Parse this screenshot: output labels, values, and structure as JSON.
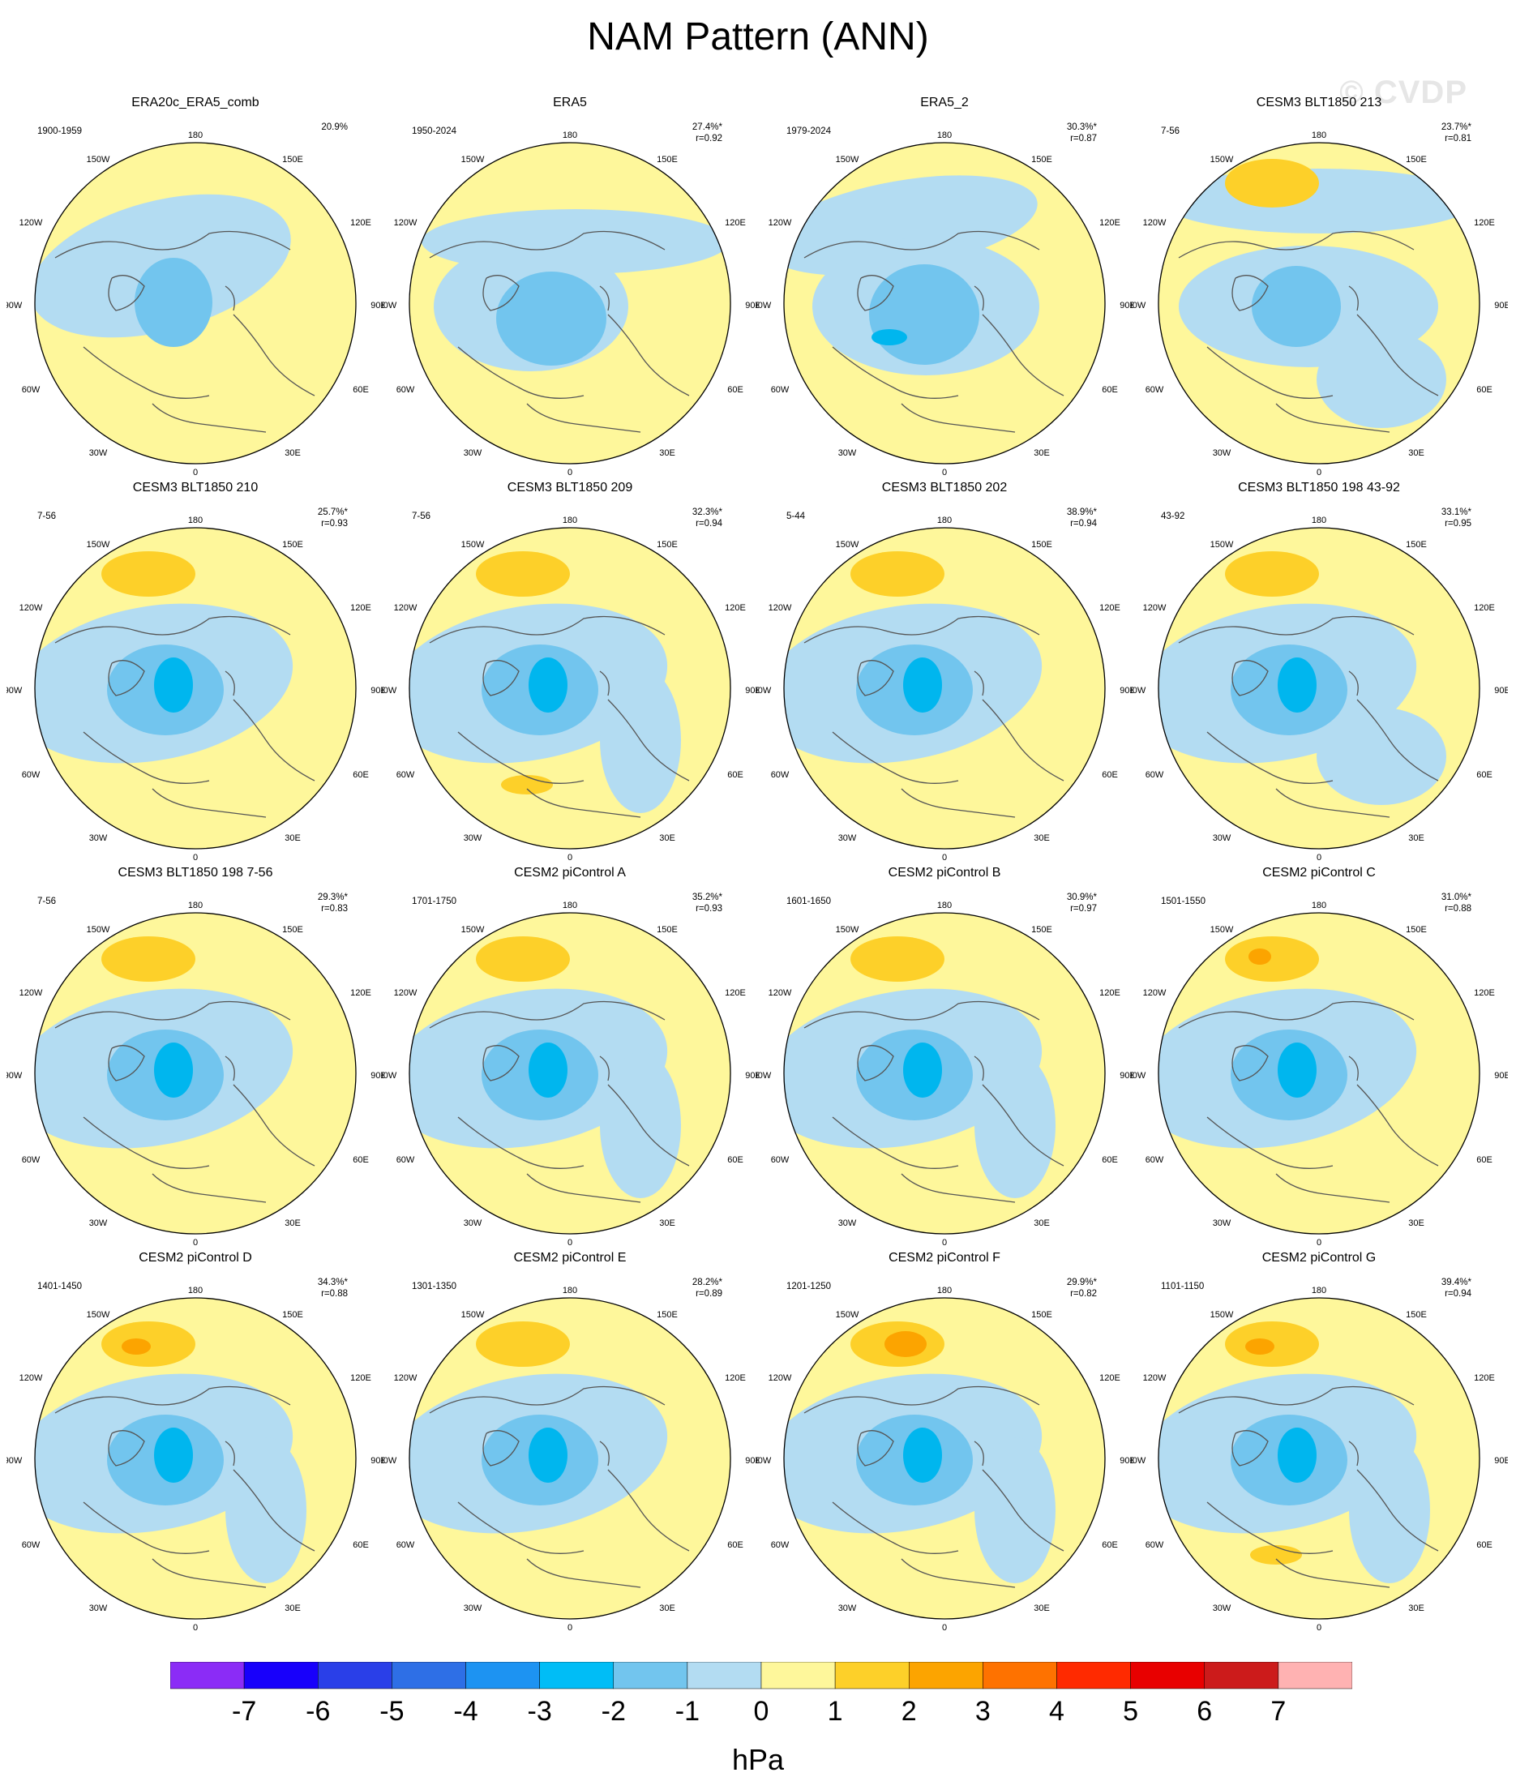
{
  "title": "NAM Pattern (ANN)",
  "watermark": "© CVDP",
  "colors": {
    "c-1": "#b3dcf2",
    "c-2": "#72c5ee",
    "c-3": "#00b6ee",
    "c1": "#fef79b",
    "c2": "#fdd029",
    "c3": "#fca400",
    "land_line": "#555555",
    "border": "#000000"
  },
  "map_labels": {
    "lon_180": "180",
    "lon_150W": "150W",
    "lon_150E": "150E",
    "lon_120W": "120W",
    "lon_120E": "120E",
    "lon_90W": "90W",
    "lon_90E": "90E",
    "lon_60W": "60W",
    "lon_60E": "60E",
    "lon_30W": "30W",
    "lon_30E": "30E",
    "lon_0": "0"
  },
  "panels": [
    {
      "title": "ERA20c_ERA5_comb",
      "period": "1900-1959",
      "pct": "20.9%",
      "r": ""
    },
    {
      "title": "ERA5",
      "period": "1950-2024",
      "pct": "27.4%*",
      "r": "r=0.92"
    },
    {
      "title": "ERA5_2",
      "period": "1979-2024",
      "pct": "30.3%*",
      "r": "r=0.87"
    },
    {
      "title": "CESM3 BLT1850 213",
      "period": "7-56",
      "pct": "23.7%*",
      "r": "r=0.81"
    },
    {
      "title": "CESM3 BLT1850 210",
      "period": "7-56",
      "pct": "25.7%*",
      "r": "r=0.93"
    },
    {
      "title": "CESM3 BLT1850 209",
      "period": "7-56",
      "pct": "32.3%*",
      "r": "r=0.94"
    },
    {
      "title": "CESM3 BLT1850 202",
      "period": "5-44",
      "pct": "38.9%*",
      "r": "r=0.94"
    },
    {
      "title": "CESM3 BLT1850 198 43-92",
      "period": "43-92",
      "pct": "33.1%*",
      "r": "r=0.95"
    },
    {
      "title": "CESM3 BLT1850 198 7-56",
      "period": "7-56",
      "pct": "29.3%*",
      "r": "r=0.83"
    },
    {
      "title": "CESM2 piControl A",
      "period": "1701-1750",
      "pct": "35.2%*",
      "r": "r=0.93"
    },
    {
      "title": "CESM2 piControl B",
      "period": "1601-1650",
      "pct": "30.9%*",
      "r": "r=0.97"
    },
    {
      "title": "CESM2 piControl C",
      "period": "1501-1550",
      "pct": "31.0%*",
      "r": "r=0.88"
    },
    {
      "title": "CESM2 piControl D",
      "period": "1401-1450",
      "pct": "34.3%*",
      "r": "r=0.88"
    },
    {
      "title": "CESM2 piControl E",
      "period": "1301-1350",
      "pct": "28.2%*",
      "r": "r=0.89"
    },
    {
      "title": "CESM2 piControl F",
      "period": "1201-1250",
      "pct": "29.9%*",
      "r": "r=0.82"
    },
    {
      "title": "CESM2 piControl G",
      "period": "1101-1150",
      "pct": "39.4%*",
      "r": "r=0.94"
    }
  ],
  "colorbar": {
    "units": "hPa",
    "labels": [
      "-7",
      "-6",
      "-5",
      "-4",
      "-3",
      "-2",
      "-1",
      "0",
      "1",
      "2",
      "3",
      "4",
      "5",
      "6",
      "7"
    ],
    "colors": [
      "#8b2cf6",
      "#1800fb",
      "#2a3fe8",
      "#2e6fe6",
      "#1d93f2",
      "#00bdf6",
      "#72c5ee",
      "#b3dcf2",
      "#fef79b",
      "#fdd029",
      "#fca400",
      "#fe7200",
      "#ff2a00",
      "#e80000",
      "#cc1b1b",
      "#ffb2b2"
    ]
  }
}
